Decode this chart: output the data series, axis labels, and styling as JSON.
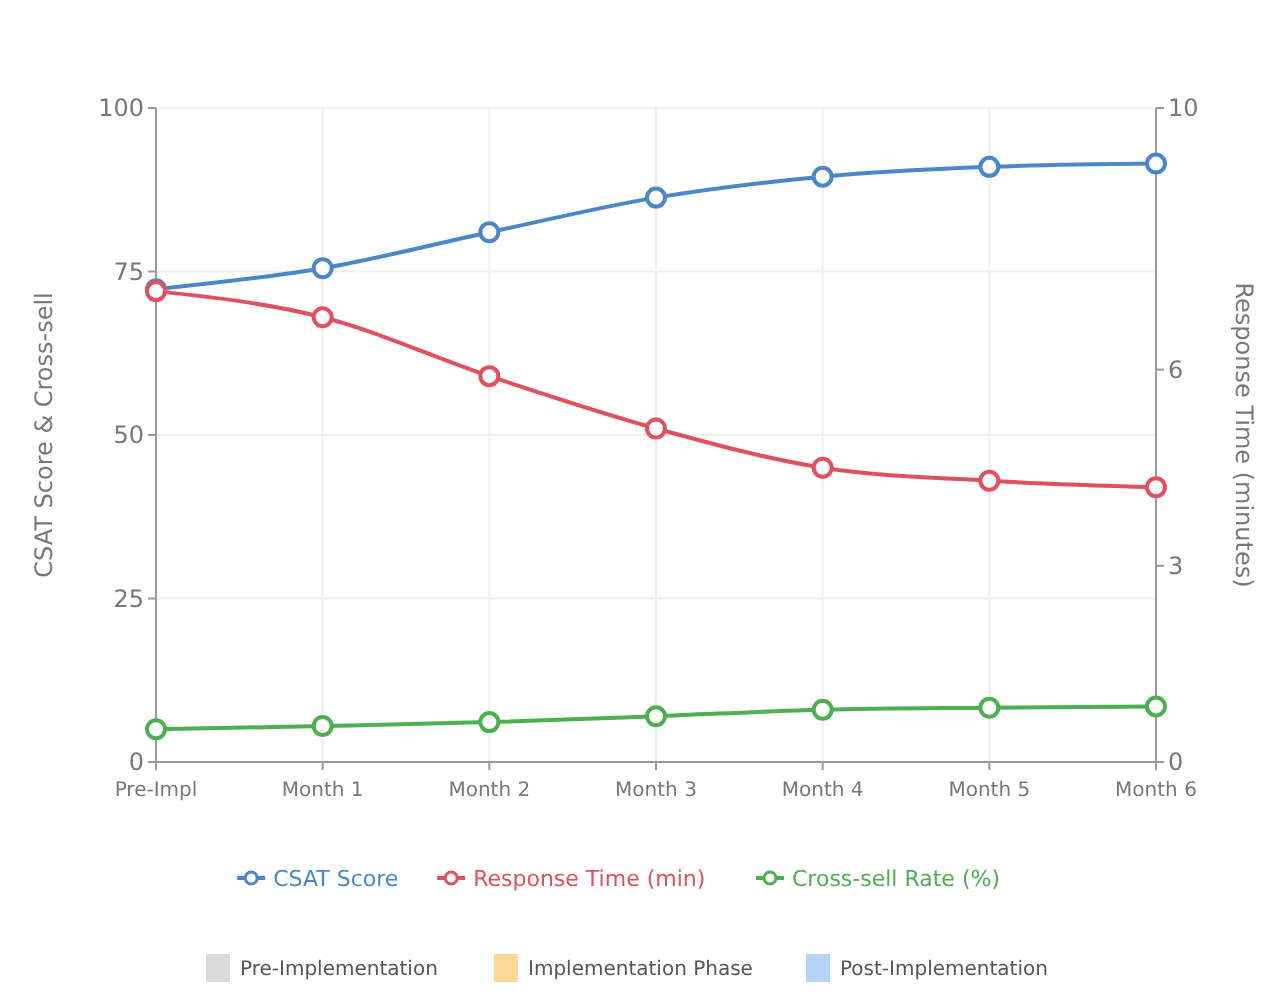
{
  "chart_data": {
    "type": "line",
    "ylabel": "CSAT Score & Cross-sell",
    "y2label": "Response Time (minutes)",
    "categories": [
      "Pre-Impl",
      "Month 1",
      "Month 2",
      "Month 3",
      "Month 4",
      "Month 5",
      "Month 6"
    ],
    "series": [
      {
        "name": "CSAT Score",
        "color": "#4a86c8",
        "values": [
          72.3,
          75.5,
          81,
          86.3,
          89.5,
          91,
          91.5
        ]
      },
      {
        "name": "Response Time (min)",
        "color": "#e0505f",
        "axis": "y2",
        "values": [
          7.2,
          6.8,
          5.9,
          5.1,
          4.5,
          4.3,
          4.2
        ]
      },
      {
        "name": "Cross-sell Rate (%)",
        "color": "#4caf50",
        "values": [
          5,
          5.5,
          6.1,
          7,
          8,
          8.3,
          8.5
        ]
      }
    ],
    "ylim": [
      0,
      100
    ],
    "yticks": [
      0,
      25,
      50,
      75,
      100
    ],
    "y2lim": [
      0,
      10
    ],
    "y2ticks": [
      0,
      3,
      6,
      10
    ],
    "annotations": [
      "Pre-Implementation",
      "Implementation Phase",
      "Post-Implementation"
    ],
    "grid": true,
    "legend": "bottom",
    "marker": "circle",
    "line_style": "solid"
  }
}
